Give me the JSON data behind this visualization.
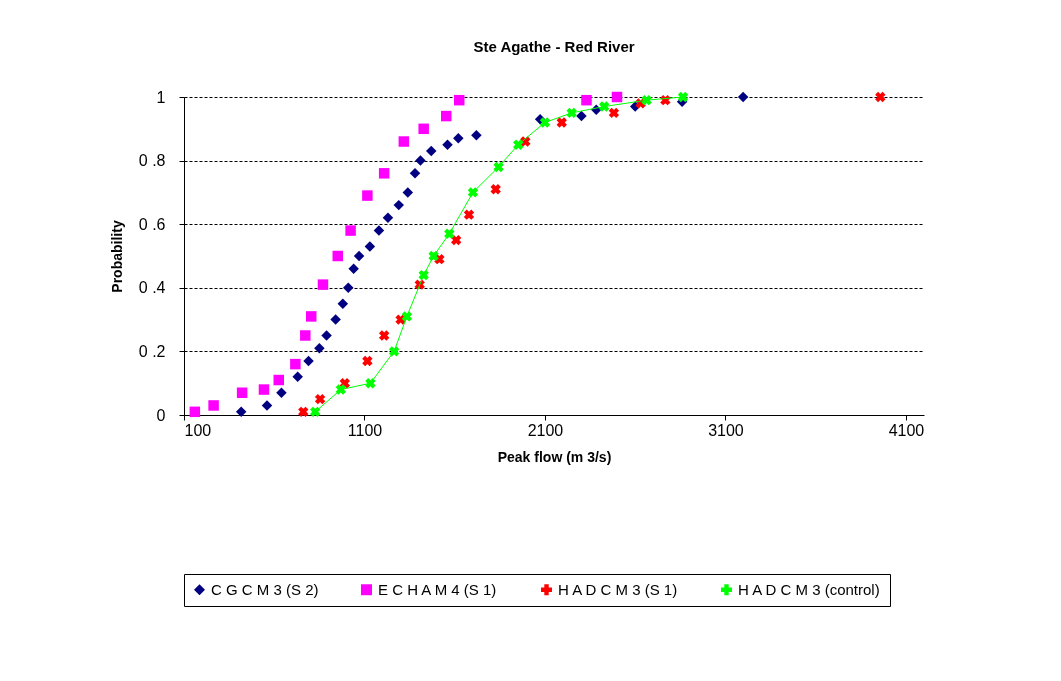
{
  "chart_data": {
    "type": "scatter",
    "title": "Ste Agathe - Red River",
    "xlabel": "Peak flow (m 3/s)",
    "ylabel": "Probability",
    "xlim": [
      100,
      4200
    ],
    "xticks": [
      100,
      1100,
      2100,
      3100,
      4100
    ],
    "ylim": [
      0,
      1
    ],
    "yticks": [
      0,
      {
        "value": 0.2,
        "label": "0 .2"
      },
      {
        "value": 0.4,
        "label": "0 .4"
      },
      {
        "value": 0.6,
        "label": "0 .6"
      },
      {
        "value": 0.8,
        "label": "0 .8"
      },
      1
    ],
    "grid": "y",
    "legend": "bottom",
    "series": [
      {
        "name": "C G C M 3 (S 2)",
        "color": "#000080",
        "marker": "diamond",
        "x": [
          417,
          560,
          640,
          730,
          790,
          850,
          890,
          940,
          980,
          1010,
          1040,
          1070,
          1130,
          1180,
          1230,
          1290,
          1340,
          1380,
          1410,
          1470,
          1560,
          1620,
          1720,
          2073,
          2302,
          2384,
          2600,
          2860,
          3198
        ],
        "values": [
          0.01,
          0.03,
          0.07,
          0.12,
          0.17,
          0.21,
          0.25,
          0.3,
          0.35,
          0.4,
          0.46,
          0.5,
          0.53,
          0.58,
          0.62,
          0.66,
          0.7,
          0.76,
          0.8,
          0.83,
          0.85,
          0.87,
          0.88,
          0.93,
          0.94,
          0.96,
          0.97,
          0.985,
          1.0
        ]
      },
      {
        "name": "E C H A M 4 (S 1)",
        "color": "#ff00ff",
        "marker": "square",
        "x": [
          160,
          264,
          422,
          543,
          625,
          717,
          772,
          805,
          870,
          952,
          1023,
          1116,
          1209,
          1318,
          1428,
          1553,
          1625,
          2330,
          2499
        ],
        "values": [
          0.01,
          0.03,
          0.07,
          0.08,
          0.11,
          0.16,
          0.25,
          0.31,
          0.41,
          0.5,
          0.58,
          0.69,
          0.76,
          0.86,
          0.9,
          0.94,
          0.99,
          0.99,
          1.0
        ]
      },
      {
        "name": "H A D C M 3 (S 1)",
        "color": "#ff0000",
        "marker": "cross",
        "x": [
          761,
          854,
          991,
          1116,
          1209,
          1300,
          1406,
          1515,
          1608,
          1679,
          1827,
          1991,
          2193,
          2482,
          2630,
          2767,
          3958
        ],
        "values": [
          0.01,
          0.05,
          0.1,
          0.17,
          0.25,
          0.3,
          0.41,
          0.49,
          0.55,
          0.63,
          0.71,
          0.86,
          0.92,
          0.95,
          0.98,
          0.99,
          1.0
        ]
      },
      {
        "name": "H A D C M 3 (control)",
        "color": "#00ff00",
        "type": "line",
        "marker": "cross",
        "x": [
          827,
          969,
          1133,
          1264,
          1335,
          1428,
          1483,
          1570,
          1701,
          1843,
          1952,
          2100,
          2248,
          2428,
          2663,
          2865
        ],
        "values": [
          0.01,
          0.08,
          0.1,
          0.2,
          0.31,
          0.44,
          0.5,
          0.57,
          0.7,
          0.78,
          0.85,
          0.92,
          0.95,
          0.97,
          0.99,
          1.0
        ]
      }
    ]
  }
}
